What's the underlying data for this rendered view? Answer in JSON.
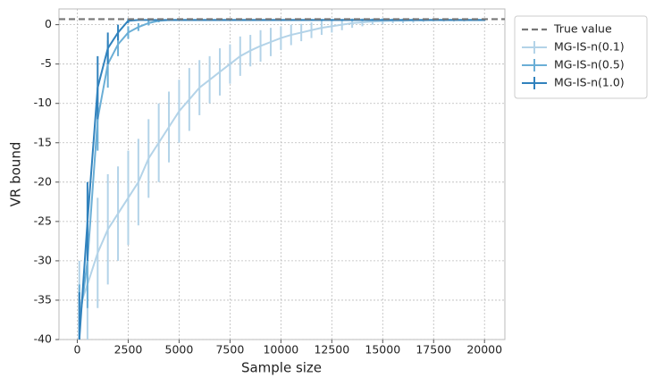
{
  "chart_data": {
    "type": "errorbar-line",
    "xlabel": "Sample size",
    "ylabel": "VR bound",
    "xlim": [
      -900,
      21000
    ],
    "ylim": [
      -40,
      2
    ],
    "xticks": [
      0,
      2500,
      5000,
      7500,
      10000,
      12500,
      15000,
      17500,
      20000
    ],
    "yticks": [
      -40,
      -35,
      -30,
      -25,
      -20,
      -15,
      -10,
      -5,
      0
    ],
    "grid": true,
    "legend": "outside-upper-right",
    "reference": {
      "name": "True value",
      "value": 0.7,
      "color": "#777777"
    },
    "x": [
      100,
      500,
      1000,
      1500,
      2000,
      2500,
      3000,
      3500,
      4000,
      4500,
      5000,
      5500,
      6000,
      6500,
      7000,
      7500,
      8000,
      8500,
      9000,
      9500,
      10000,
      10500,
      11000,
      11500,
      12000,
      12500,
      13000,
      13500,
      14000,
      14500,
      15000,
      15500,
      16000,
      16500,
      17000,
      17500,
      18000,
      18500,
      19000,
      19500,
      20000
    ],
    "series": [
      {
        "name": "MG-IS-n(0.1)",
        "color": "#b3d3e8",
        "values": [
          -36,
          -33,
          -29,
          -26,
          -24,
          -22,
          -20,
          -17,
          -15,
          -13,
          -11,
          -9.5,
          -8,
          -7,
          -6,
          -5,
          -4,
          -3.3,
          -2.7,
          -2.2,
          -1.7,
          -1.3,
          -1,
          -0.7,
          -0.4,
          -0.2,
          0,
          0.2,
          0.3,
          0.4,
          0.45,
          0.5,
          0.5,
          0.55,
          0.55,
          0.6,
          0.6,
          0.6,
          0.6,
          0.6,
          0.6
        ],
        "errors": [
          6,
          7,
          7,
          7,
          6,
          6,
          5.5,
          5,
          5,
          4.5,
          4,
          4,
          3.5,
          3,
          3,
          2.5,
          2.5,
          2,
          2,
          1.8,
          1.5,
          1.3,
          1.1,
          1,
          0.9,
          0.8,
          0.7,
          0.6,
          0.5,
          0.4,
          0.4,
          0.3,
          0.3,
          0.3,
          0.2,
          0.2,
          0.2,
          0.2,
          0.2,
          0.1,
          0.1
        ]
      },
      {
        "name": "MG-IS-n(0.5)",
        "color": "#6aaed6",
        "values": [
          -38,
          -30,
          -12,
          -5,
          -2.5,
          -1,
          -0.3,
          0.2,
          0.5,
          0.6,
          0.6,
          0.6,
          0.6,
          0.6,
          0.6,
          0.6,
          0.6,
          0.6,
          0.6,
          0.6,
          0.6,
          0.6,
          0.6,
          0.6,
          0.6,
          0.6,
          0.6,
          0.6,
          0.6,
          0.6,
          0.6,
          0.6,
          0.6,
          0.6,
          0.6,
          0.6,
          0.6,
          0.6,
          0.6,
          0.6,
          0.6
        ],
        "errors": [
          5,
          6,
          4,
          3,
          1.5,
          0.8,
          0.5,
          0.3,
          0.2,
          0.1,
          0.1,
          0.1,
          0.1,
          0.1,
          0.1,
          0.1,
          0.1,
          0.1,
          0.1,
          0.1,
          0.1,
          0.1,
          0.1,
          0.1,
          0.1,
          0.1,
          0.1,
          0.1,
          0.1,
          0.1,
          0.1,
          0.1,
          0.1,
          0.1,
          0.1,
          0.1,
          0.1,
          0.1,
          0.1,
          0.1,
          0.1
        ]
      },
      {
        "name": "MG-IS-n(1.0)",
        "color": "#3182bd",
        "values": [
          -40,
          -25,
          -8,
          -3,
          -1,
          0.5,
          0.6,
          0.6,
          0.6,
          0.6,
          0.6,
          0.6,
          0.6,
          0.6,
          0.6,
          0.6,
          0.6,
          0.6,
          0.6,
          0.6,
          0.6,
          0.6,
          0.6,
          0.6,
          0.6,
          0.6,
          0.6,
          0.6,
          0.6,
          0.6,
          0.6,
          0.6,
          0.6,
          0.6,
          0.6,
          0.6,
          0.6,
          0.6,
          0.6,
          0.6,
          0.6
        ],
        "errors": [
          6,
          5,
          4,
          2,
          1,
          0.3,
          0.1,
          0.1,
          0.1,
          0.1,
          0.1,
          0.1,
          0.1,
          0.1,
          0.1,
          0.1,
          0.1,
          0.1,
          0.1,
          0.1,
          0.1,
          0.1,
          0.1,
          0.1,
          0.1,
          0.1,
          0.1,
          0.1,
          0.1,
          0.1,
          0.1,
          0.1,
          0.1,
          0.1,
          0.1,
          0.1,
          0.1,
          0.1,
          0.1,
          0.1,
          0.1
        ]
      }
    ]
  }
}
